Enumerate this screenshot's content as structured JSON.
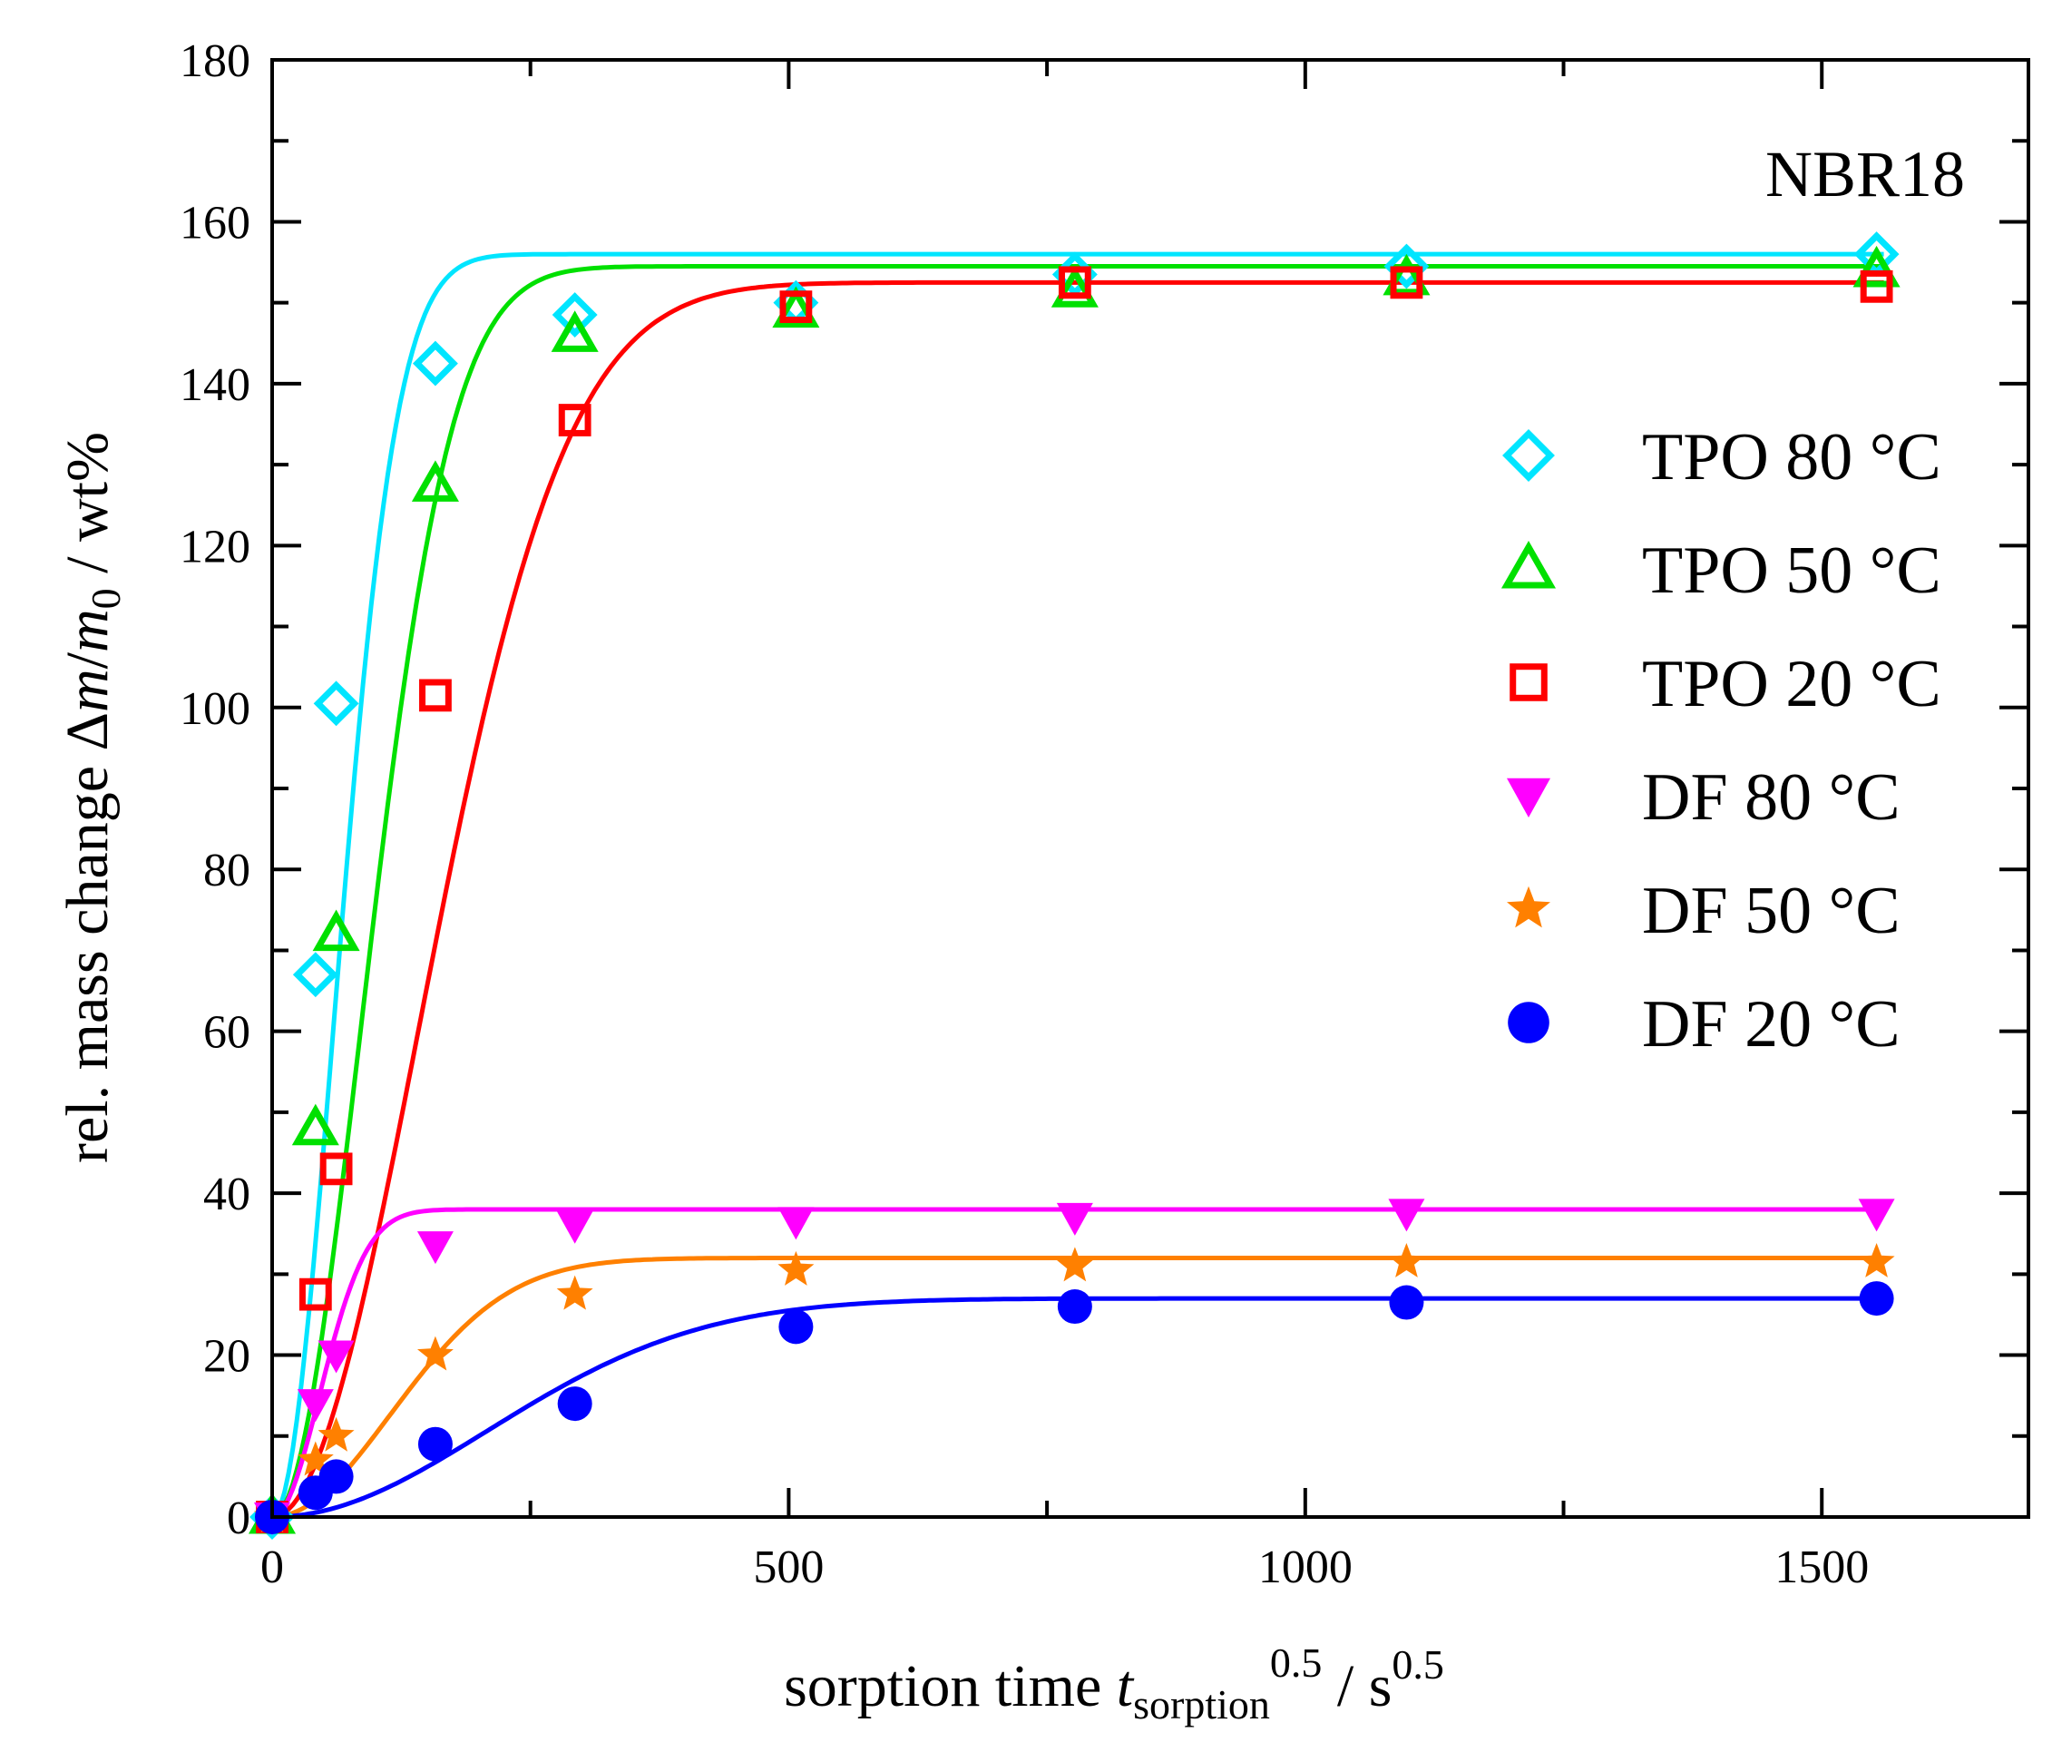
{
  "chart_data": {
    "type": "scatter",
    "annotation": "NBR18",
    "xlabel": {
      "main": "sorption time ",
      "var": "t",
      "sub": "sorption",
      "sup1": "0.5",
      "unit": " / s",
      "sup2": "0.5"
    },
    "ylabel": {
      "main": "rel. mass change Δ",
      "m1": "m",
      "slash": "/",
      "m2": "m",
      "sub": "0",
      "unit": "  / wt%"
    },
    "xlim": [
      0,
      1700
    ],
    "ylim": [
      0,
      180
    ],
    "xticks": [
      0,
      500,
      1000,
      1500
    ],
    "yticks": [
      0,
      20,
      40,
      60,
      80,
      100,
      120,
      140,
      160,
      180
    ],
    "legend_position": "right",
    "series": [
      {
        "name": "TPO 80 °C",
        "marker": "diamond",
        "color": "#00e5ff",
        "x": [
          0,
          42,
          62,
          158,
          293,
          507,
          777,
          1098,
          1553
        ],
        "y": [
          0,
          67,
          100.5,
          142.5,
          148.5,
          150,
          153.5,
          154.5,
          156
        ],
        "fit": {
          "plateau": 156,
          "k": 0.0118
        }
      },
      {
        "name": "TPO 50 °C",
        "marker": "triangle-up",
        "color": "#00e000",
        "x": [
          0,
          42,
          62,
          158,
          293,
          507,
          777,
          1098,
          1553
        ],
        "y": [
          0,
          48,
          72,
          127.5,
          146,
          149,
          151.5,
          153,
          154
        ],
        "fit": {
          "plateau": 154.5,
          "k": 0.0082
        }
      },
      {
        "name": "TPO 20 °C",
        "marker": "square",
        "color": "#ff0000",
        "x": [
          0,
          42,
          62,
          158,
          293,
          507,
          777,
          1098,
          1553
        ],
        "y": [
          0,
          27.5,
          43,
          101.5,
          135.5,
          149.5,
          152.5,
          152.5,
          152
        ],
        "fit": {
          "plateau": 152.5,
          "k": 0.005
        }
      },
      {
        "name": "DF 80 °C",
        "marker": "triangle-down",
        "color": "#ff00ff",
        "x": [
          0,
          42,
          62,
          158,
          293,
          507,
          777,
          1098,
          1553
        ],
        "y": [
          0,
          14,
          20,
          33.5,
          36,
          36.5,
          37,
          37.5,
          37.5
        ],
        "fit": {
          "plateau": 38,
          "k": 0.0155
        }
      },
      {
        "name": "DF 50 °C",
        "marker": "star",
        "color": "#ff8000",
        "x": [
          0,
          42,
          62,
          158,
          293,
          507,
          777,
          1098,
          1553
        ],
        "y": [
          0,
          7,
          10,
          20,
          27.5,
          30.5,
          31,
          31.5,
          31.5
        ],
        "fit": {
          "plateau": 32,
          "k": 0.0062
        }
      },
      {
        "name": "DF 20 °C",
        "marker": "circle",
        "color": "#0000ff",
        "x": [
          0,
          42,
          62,
          158,
          293,
          507,
          777,
          1098,
          1553
        ],
        "y": [
          0,
          3,
          5,
          9,
          14,
          23.5,
          26,
          26.5,
          27
        ],
        "fit": {
          "plateau": 27,
          "k": 0.0034
        }
      }
    ]
  }
}
